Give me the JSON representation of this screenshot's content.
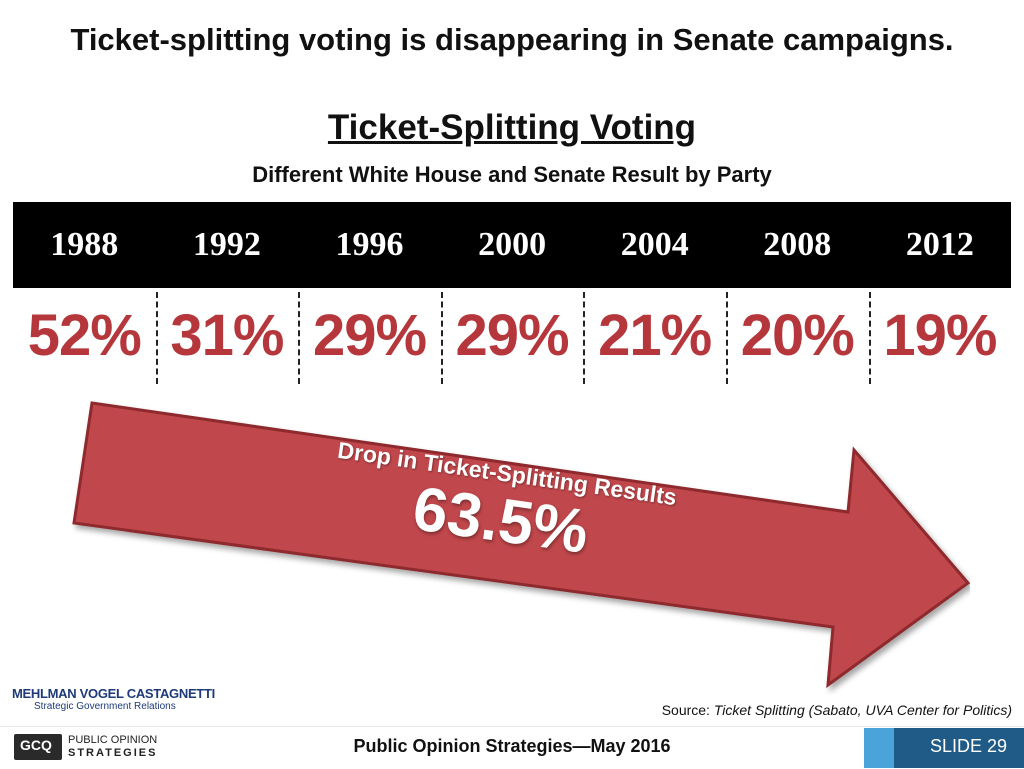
{
  "slide": {
    "title": "Ticket-splitting voting is disappearing in Senate campaigns.",
    "source_prefix": "Source: ",
    "source_text": "Ticket Splitting (Sabato, UVA Center for Politics)",
    "footer": "Public Opinion Strategies—May 2016",
    "slide_number": "SLIDE 29",
    "logo_mvc_name": "MEHLMAN VOGEL CASTAGNETTI",
    "logo_mvc_sub": "Strategic Government Relations",
    "logo_pos_mark": "GCQ",
    "logo_pos_line1": "PUBLIC OPINION",
    "logo_pos_line2": "STRATEGIES",
    "arrow_label": "Drop in Ticket-Splitting Results",
    "arrow_value": "63.5%"
  },
  "colors": {
    "accent_red": "#b5373c",
    "arrow_fill": "#c0474c",
    "band": "#000000",
    "tab_blue": "#1f5b86",
    "tab_accent": "#4aa3d9"
  },
  "chart_data": {
    "type": "table",
    "title": "Ticket-Splitting Voting",
    "subtitle": "Different White House and Senate Result by Party",
    "categories": [
      "1988",
      "1992",
      "1996",
      "2000",
      "2004",
      "2008",
      "2012"
    ],
    "values": [
      52,
      31,
      29,
      29,
      21,
      20,
      19
    ],
    "value_labels": [
      "52%",
      "31%",
      "29%",
      "29%",
      "21%",
      "20%",
      "19%"
    ]
  }
}
